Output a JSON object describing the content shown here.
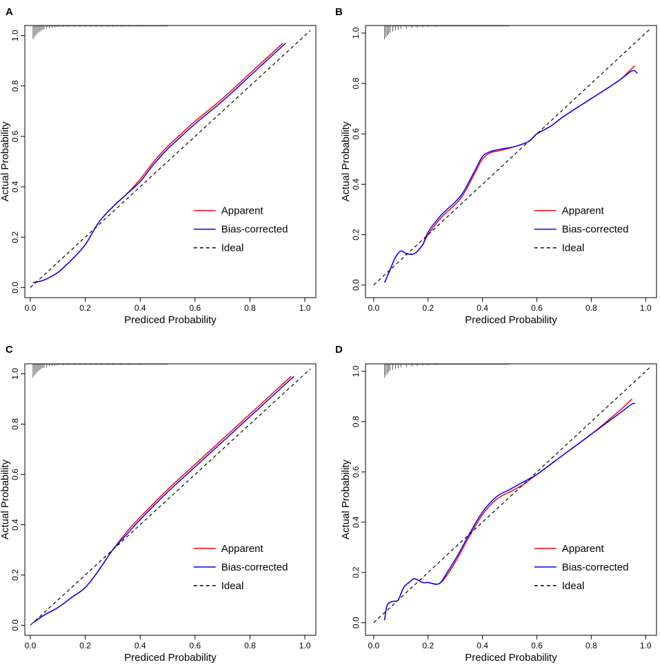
{
  "figure": {
    "colors": {
      "apparent": "#ff0000",
      "bias": "#0000ff",
      "ideal": "#000000",
      "rug": "#555555"
    },
    "legend": {
      "apparent": "Apparent",
      "bias": "Bias-corrected",
      "ideal": "Ideal"
    },
    "xlabel": "Prediced Probability",
    "ylabel": "Actual Probability"
  },
  "chart_data": [
    {
      "panel": "A",
      "type": "line",
      "xlabel": "Prediced Probability",
      "ylabel": "Actual Probability",
      "xlim": [
        -0.02,
        1.04
      ],
      "ylim": [
        -0.04,
        1.04
      ],
      "xticks": [
        "0.0",
        "0.2",
        "0.4",
        "0.6",
        "0.8",
        "1.0"
      ],
      "yticks": [
        "0.0",
        "0.2",
        "0.4",
        "0.6",
        "0.8",
        "1.0"
      ],
      "legend_position": "bottom-right",
      "series": [
        {
          "name": "Apparent",
          "x": [
            0.01,
            0.05,
            0.1,
            0.15,
            0.2,
            0.25,
            0.3,
            0.35,
            0.4,
            0.45,
            0.5,
            0.55,
            0.6,
            0.7,
            0.8,
            0.9,
            0.92
          ],
          "y": [
            0.02,
            0.03,
            0.06,
            0.11,
            0.17,
            0.26,
            0.32,
            0.37,
            0.43,
            0.5,
            0.56,
            0.61,
            0.66,
            0.75,
            0.85,
            0.95,
            0.97
          ]
        },
        {
          "name": "Bias-corrected",
          "x": [
            0.01,
            0.05,
            0.1,
            0.15,
            0.2,
            0.25,
            0.3,
            0.35,
            0.4,
            0.45,
            0.5,
            0.55,
            0.6,
            0.7,
            0.8,
            0.9,
            0.93
          ],
          "y": [
            0.02,
            0.03,
            0.06,
            0.11,
            0.17,
            0.26,
            0.32,
            0.37,
            0.42,
            0.49,
            0.55,
            0.6,
            0.65,
            0.74,
            0.84,
            0.94,
            0.97
          ]
        },
        {
          "name": "Ideal",
          "x": [
            0,
            1.02
          ],
          "y": [
            0,
            1.02
          ]
        }
      ],
      "rug": [
        0.01,
        0.015,
        0.02,
        0.025,
        0.03,
        0.035,
        0.04,
        0.045,
        0.05,
        0.06,
        0.07,
        0.08,
        0.09,
        0.1,
        0.12,
        0.14,
        0.16,
        0.18,
        0.2,
        0.22,
        0.24,
        0.26,
        0.28,
        0.3,
        0.33,
        0.36,
        0.4
      ]
    },
    {
      "panel": "B",
      "type": "line",
      "xlabel": "Prediced Probability",
      "ylabel": "Actual Probability",
      "xlim": [
        -0.03,
        1.04
      ],
      "ylim": [
        -0.05,
        1.03
      ],
      "xticks": [
        "0.0",
        "0.2",
        "0.4",
        "0.6",
        "0.8",
        "1.0"
      ],
      "yticks": [
        "0.0",
        "0.2",
        "0.4",
        "0.6",
        "0.8",
        "1.0"
      ],
      "legend_position": "bottom-right",
      "series": [
        {
          "name": "Apparent",
          "x": [
            0.04,
            0.06,
            0.08,
            0.1,
            0.12,
            0.15,
            0.18,
            0.2,
            0.25,
            0.3,
            0.33,
            0.37,
            0.4,
            0.43,
            0.47,
            0.52,
            0.57,
            0.6,
            0.65,
            0.7,
            0.8,
            0.9,
            0.94,
            0.96
          ],
          "y": [
            0.01,
            0.06,
            0.11,
            0.135,
            0.125,
            0.125,
            0.16,
            0.2,
            0.27,
            0.32,
            0.36,
            0.44,
            0.5,
            0.525,
            0.535,
            0.55,
            0.57,
            0.6,
            0.63,
            0.67,
            0.74,
            0.81,
            0.85,
            0.87
          ]
        },
        {
          "name": "Bias-corrected",
          "x": [
            0.04,
            0.06,
            0.08,
            0.1,
            0.12,
            0.15,
            0.18,
            0.2,
            0.25,
            0.3,
            0.33,
            0.37,
            0.4,
            0.43,
            0.47,
            0.52,
            0.57,
            0.6,
            0.65,
            0.7,
            0.8,
            0.9,
            0.95,
            0.97
          ],
          "y": [
            0.01,
            0.06,
            0.11,
            0.135,
            0.125,
            0.125,
            0.16,
            0.21,
            0.28,
            0.33,
            0.37,
            0.45,
            0.51,
            0.53,
            0.54,
            0.55,
            0.57,
            0.6,
            0.63,
            0.67,
            0.74,
            0.81,
            0.85,
            0.84
          ]
        },
        {
          "name": "Ideal",
          "x": [
            0,
            1.02
          ],
          "y": [
            0,
            1.02
          ]
        }
      ],
      "rug": [
        0.04,
        0.045,
        0.05,
        0.055,
        0.06,
        0.07,
        0.08,
        0.09,
        0.1,
        0.12,
        0.14,
        0.16,
        0.18,
        0.2,
        0.23,
        0.26,
        0.3,
        0.35
      ]
    },
    {
      "panel": "C",
      "type": "line",
      "xlabel": "Prediced Probability",
      "ylabel": "Actual Probability",
      "xlim": [
        -0.02,
        1.04
      ],
      "ylim": [
        -0.04,
        1.04
      ],
      "xticks": [
        "0.0",
        "0.2",
        "0.4",
        "0.6",
        "0.8",
        "1.0"
      ],
      "yticks": [
        "0.0",
        "0.2",
        "0.4",
        "0.6",
        "0.8",
        "1.0"
      ],
      "legend_position": "bottom-right",
      "series": [
        {
          "name": "Apparent",
          "x": [
            0.01,
            0.05,
            0.1,
            0.15,
            0.2,
            0.25,
            0.3,
            0.35,
            0.4,
            0.5,
            0.6,
            0.7,
            0.8,
            0.9,
            0.95
          ],
          "y": [
            0.01,
            0.04,
            0.07,
            0.11,
            0.15,
            0.22,
            0.3,
            0.37,
            0.43,
            0.54,
            0.64,
            0.74,
            0.84,
            0.94,
            0.99
          ]
        },
        {
          "name": "Bias-corrected",
          "x": [
            0.01,
            0.05,
            0.1,
            0.15,
            0.2,
            0.25,
            0.3,
            0.35,
            0.4,
            0.5,
            0.6,
            0.7,
            0.8,
            0.9,
            0.96
          ],
          "y": [
            0.01,
            0.04,
            0.07,
            0.11,
            0.15,
            0.22,
            0.3,
            0.36,
            0.42,
            0.53,
            0.63,
            0.73,
            0.83,
            0.93,
            0.99
          ]
        },
        {
          "name": "Ideal",
          "x": [
            0,
            1.02
          ],
          "y": [
            0,
            1.02
          ]
        }
      ],
      "rug": [
        0.01,
        0.015,
        0.02,
        0.025,
        0.03,
        0.035,
        0.04,
        0.045,
        0.05,
        0.06,
        0.07,
        0.08,
        0.09,
        0.1,
        0.12,
        0.14,
        0.16,
        0.18,
        0.2,
        0.22,
        0.24,
        0.26,
        0.28,
        0.3,
        0.33,
        0.36,
        0.4
      ]
    },
    {
      "panel": "D",
      "type": "line",
      "xlabel": "Prediced Probability",
      "ylabel": "Actual Probability",
      "xlim": [
        -0.03,
        1.04
      ],
      "ylim": [
        -0.05,
        1.03
      ],
      "xticks": [
        "0.0",
        "0.2",
        "0.4",
        "0.6",
        "0.8",
        "1.0"
      ],
      "yticks": [
        "0.0",
        "0.2",
        "0.4",
        "0.6",
        "0.8",
        "1.0"
      ],
      "legend_position": "bottom-right",
      "series": [
        {
          "name": "Apparent",
          "x": [
            0.04,
            0.05,
            0.07,
            0.09,
            0.11,
            0.13,
            0.15,
            0.18,
            0.2,
            0.24,
            0.27,
            0.31,
            0.35,
            0.4,
            0.45,
            0.5,
            0.55,
            0.6,
            0.7,
            0.8,
            0.9,
            0.95
          ],
          "y": [
            0.01,
            0.07,
            0.085,
            0.09,
            0.14,
            0.16,
            0.175,
            0.16,
            0.16,
            0.155,
            0.19,
            0.26,
            0.34,
            0.43,
            0.49,
            0.52,
            0.55,
            0.59,
            0.67,
            0.75,
            0.84,
            0.89
          ]
        },
        {
          "name": "Bias-corrected",
          "x": [
            0.04,
            0.05,
            0.07,
            0.09,
            0.11,
            0.13,
            0.15,
            0.18,
            0.2,
            0.24,
            0.27,
            0.31,
            0.35,
            0.4,
            0.45,
            0.5,
            0.55,
            0.6,
            0.7,
            0.8,
            0.9,
            0.95,
            0.96
          ],
          "y": [
            0.01,
            0.07,
            0.085,
            0.09,
            0.14,
            0.16,
            0.175,
            0.16,
            0.16,
            0.155,
            0.2,
            0.27,
            0.35,
            0.44,
            0.5,
            0.53,
            0.56,
            0.59,
            0.67,
            0.75,
            0.83,
            0.87,
            0.87
          ]
        },
        {
          "name": "Ideal",
          "x": [
            0,
            1.02
          ],
          "y": [
            0,
            1.02
          ]
        }
      ],
      "rug": [
        0.04,
        0.045,
        0.05,
        0.055,
        0.06,
        0.07,
        0.08,
        0.09,
        0.1,
        0.12,
        0.14,
        0.16,
        0.18,
        0.2,
        0.23,
        0.26,
        0.3,
        0.35
      ]
    }
  ]
}
